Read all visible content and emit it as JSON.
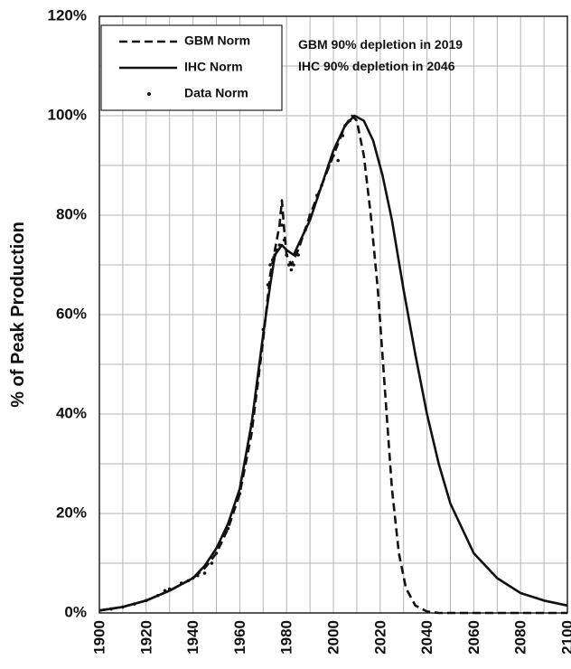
{
  "chart_data": {
    "type": "line",
    "title": "",
    "xlabel": "",
    "ylabel": "% of Peak Production",
    "xlim": [
      1900,
      2100
    ],
    "ylim": [
      0,
      120
    ],
    "x_ticks": [
      "1900",
      "1920",
      "1940",
      "1960",
      "1980",
      "2000",
      "2020",
      "2040",
      "2060",
      "2080",
      "2100"
    ],
    "y_ticks": [
      "0%",
      "20%",
      "40%",
      "60%",
      "80%",
      "100%",
      "120%"
    ],
    "grid": true,
    "legend_position": "top-left",
    "annotations": [
      "GBM 90% depletion in 2019",
      "IHC 90% depletion in 2046"
    ],
    "series": [
      {
        "name": "GBM Norm",
        "style": "dashed",
        "x": [
          1900,
          1910,
          1920,
          1930,
          1940,
          1945,
          1950,
          1955,
          1960,
          1965,
          1970,
          1973,
          1975,
          1977,
          1978,
          1979,
          1980,
          1982,
          1985,
          1990,
          1995,
          2000,
          2005,
          2008,
          2010,
          2013,
          2016,
          2019,
          2022,
          2025,
          2028,
          2031,
          2035,
          2040,
          2045,
          2050,
          2060,
          2080,
          2100
        ],
        "y": [
          0.5,
          1.2,
          2.5,
          4.5,
          7,
          9,
          12,
          17,
          24,
          36,
          55,
          68,
          73,
          78,
          83,
          77,
          72,
          70,
          73,
          80,
          86,
          92,
          98,
          100,
          99,
          92,
          80,
          65,
          45,
          25,
          12,
          5,
          1.5,
          0.3,
          0,
          0,
          0,
          0,
          0
        ]
      },
      {
        "name": "IHC Norm",
        "style": "solid",
        "x": [
          1900,
          1910,
          1920,
          1930,
          1940,
          1945,
          1950,
          1955,
          1960,
          1965,
          1970,
          1973,
          1975,
          1978,
          1980,
          1983,
          1985,
          1990,
          1995,
          2000,
          2005,
          2009,
          2013,
          2017,
          2021,
          2025,
          2030,
          2035,
          2040,
          2045,
          2050,
          2060,
          2070,
          2080,
          2090,
          2100
        ],
        "y": [
          0.5,
          1.2,
          2.5,
          4.5,
          7,
          9.5,
          13,
          18,
          25,
          38,
          56,
          66,
          72,
          74,
          73,
          72,
          74,
          79,
          86,
          93,
          98,
          100,
          99,
          95,
          88,
          79,
          65,
          52,
          40,
          30,
          22,
          12,
          7,
          4,
          2.5,
          1.5
        ]
      },
      {
        "name": "Data Norm",
        "style": "dots",
        "x": [
          1905,
          1910,
          1915,
          1920,
          1925,
          1928,
          1930,
          1935,
          1938,
          1940,
          1942,
          1945,
          1948,
          1950,
          1955,
          1960,
          1965,
          1968,
          1970,
          1972,
          1973,
          1974,
          1975,
          1976,
          1977,
          1978,
          1979,
          1980,
          1981,
          1982,
          1983,
          1985,
          1988,
          1990,
          1993,
          1995,
          1998,
          2000,
          2002,
          2004,
          2005,
          2007
        ],
        "y": [
          0.8,
          1.2,
          1.8,
          2.5,
          3.5,
          4.5,
          4.8,
          6,
          6.5,
          7,
          7.5,
          8,
          10,
          12,
          17,
          24,
          38,
          48,
          57,
          66,
          70,
          71,
          72,
          73,
          74,
          78,
          75,
          72,
          70,
          69,
          70,
          72,
          77,
          80,
          84,
          86,
          90,
          92,
          91,
          96,
          98,
          99
        ]
      }
    ]
  }
}
